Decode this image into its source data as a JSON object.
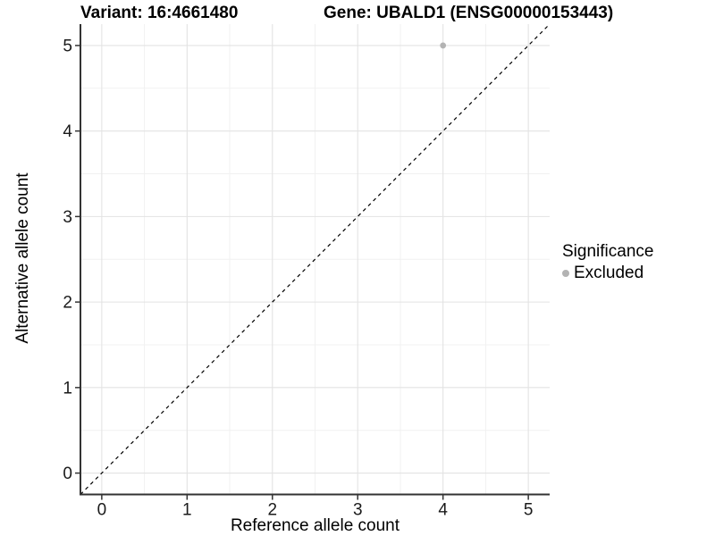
{
  "chart_data": {
    "type": "scatter",
    "title_left": "Variant: 16:4661480",
    "title_right": "Gene: UBALD1 (ENSG00000153443)",
    "xlabel": "Reference allele count",
    "ylabel": "Alternative allele count",
    "xlim": [
      -0.25,
      5.25
    ],
    "ylim": [
      -0.25,
      5.25
    ],
    "xticks": [
      0,
      1,
      2,
      3,
      4,
      5
    ],
    "yticks": [
      0,
      1,
      2,
      3,
      4,
      5
    ],
    "minor_ticks": [
      0.5,
      1.5,
      2.5,
      3.5,
      4.5
    ],
    "grid": true,
    "identity_line": {
      "slope": 1,
      "intercept": 0,
      "style": "dashed",
      "color": "#000000"
    },
    "series": [
      {
        "name": "Excluded",
        "color": "#b3b3b3",
        "points": [
          {
            "x": 4,
            "y": 5
          }
        ]
      }
    ],
    "legend": {
      "title": "Significance",
      "position": "right",
      "items": [
        {
          "label": "Excluded",
          "color": "#b3b3b3"
        }
      ]
    },
    "colors": {
      "background": "#ffffff",
      "grid_major": "#e3e3e3",
      "grid_minor": "#f1f1f1",
      "axis_line": "#333333",
      "tick_mark": "#333333",
      "tick_text": "#1a1a1a"
    }
  }
}
